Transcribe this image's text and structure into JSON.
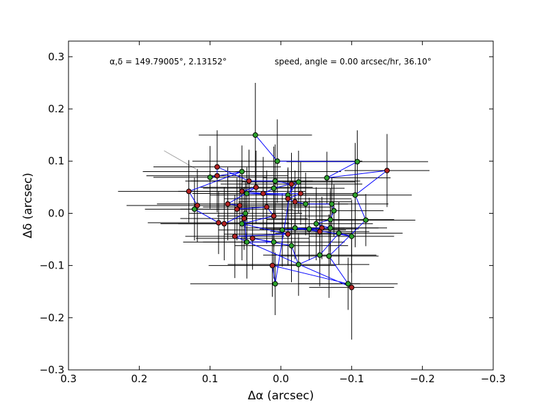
{
  "chart_data": {
    "type": "scatter",
    "title": "",
    "xlabel": "Δα (arcsec)",
    "ylabel": "Δδ (arcsec)",
    "xlim": [
      0.3,
      -0.3
    ],
    "ylim": [
      -0.3,
      0.33
    ],
    "x_inverted": true,
    "grid": false,
    "xticks": [
      0.3,
      0.2,
      0.1,
      0.0,
      -0.1,
      -0.2,
      -0.3
    ],
    "xtick_labels": [
      "0.3",
      "0.2",
      "0.1",
      "0.0",
      "−0.1",
      "−0.2",
      "−0.3"
    ],
    "yticks": [
      -0.3,
      -0.2,
      -0.1,
      0.0,
      0.1,
      0.2,
      0.3
    ],
    "ytick_labels": [
      "−0.3",
      "−0.2",
      "−0.1",
      "0.0",
      "0.1",
      "0.2",
      "0.3"
    ],
    "annotations": [
      "α,δ = 149.79005°, 2.13152°",
      "speed, angle = 0.00 arcsec/hr, 36.10°"
    ],
    "colors": {
      "path": "#0000ff",
      "errorbar": "#000000",
      "green_marker": "#2ca02c",
      "red_marker": "#b22222",
      "direction_line": "#a0a0a0"
    },
    "direction_line": {
      "x": [
        0.165,
        0.12
      ],
      "y": [
        0.12,
        0.085
      ]
    },
    "series": [
      {
        "marker_color": "green",
        "points": [
          {
            "x": 0.036,
            "y": 0.15,
            "xerr": 0.08,
            "yerr": 0.1
          },
          {
            "x": 0.005,
            "y": 0.1,
            "xerr": 0.12,
            "yerr": 0.08
          },
          {
            "x": -0.108,
            "y": 0.099,
            "xerr": 0.1,
            "yerr": 0.06
          },
          {
            "x": 0.055,
            "y": 0.08,
            "xerr": 0.14,
            "yerr": 0.05
          },
          {
            "x": 0.1,
            "y": 0.069,
            "xerr": 0.08,
            "yerr": 0.06
          },
          {
            "x": -0.065,
            "y": 0.068,
            "xerr": 0.09,
            "yerr": 0.05
          },
          {
            "x": 0.008,
            "y": 0.062,
            "xerr": 0.12,
            "yerr": 0.07
          },
          {
            "x": -0.025,
            "y": 0.06,
            "xerr": 0.08,
            "yerr": 0.06
          },
          {
            "x": 0.01,
            "y": 0.048,
            "xerr": 0.1,
            "yerr": 0.08
          },
          {
            "x": -0.105,
            "y": 0.035,
            "xerr": 0.08,
            "yerr": 0.1
          },
          {
            "x": 0.048,
            "y": 0.038,
            "xerr": 0.07,
            "yerr": 0.05
          },
          {
            "x": -0.01,
            "y": 0.035,
            "xerr": 0.11,
            "yerr": 0.05
          },
          {
            "x": -0.035,
            "y": 0.018,
            "xerr": 0.06,
            "yerr": 0.06
          },
          {
            "x": -0.072,
            "y": 0.018,
            "xerr": 0.08,
            "yerr": 0.05
          },
          {
            "x": 0.122,
            "y": 0.008,
            "xerr": 0.07,
            "yerr": 0.06
          },
          {
            "x": -0.075,
            "y": 0.005,
            "xerr": 0.07,
            "yerr": 0.05
          },
          {
            "x": 0.05,
            "y": 0.0,
            "xerr": 0.08,
            "yerr": 0.06
          },
          {
            "x": -0.07,
            "y": -0.012,
            "xerr": 0.09,
            "yerr": 0.06
          },
          {
            "x": -0.12,
            "y": -0.013,
            "xerr": 0.07,
            "yerr": 0.05
          },
          {
            "x": 0.055,
            "y": -0.02,
            "xerr": 0.09,
            "yerr": 0.07
          },
          {
            "x": -0.05,
            "y": -0.02,
            "xerr": 0.08,
            "yerr": 0.07
          },
          {
            "x": -0.02,
            "y": -0.028,
            "xerr": 0.07,
            "yerr": 0.06
          },
          {
            "x": -0.07,
            "y": -0.028,
            "xerr": 0.08,
            "yerr": 0.07
          },
          {
            "x": -0.04,
            "y": -0.03,
            "xerr": 0.07,
            "yerr": 0.06
          },
          {
            "x": -0.002,
            "y": -0.032,
            "xerr": 0.09,
            "yerr": 0.07
          },
          {
            "x": -0.082,
            "y": -0.038,
            "xerr": 0.09,
            "yerr": 0.06
          },
          {
            "x": -0.1,
            "y": -0.044,
            "xerr": 0.06,
            "yerr": 0.07
          },
          {
            "x": 0.01,
            "y": -0.055,
            "xerr": 0.1,
            "yerr": 0.07
          },
          {
            "x": 0.048,
            "y": -0.055,
            "xerr": 0.09,
            "yerr": 0.07
          },
          {
            "x": -0.015,
            "y": -0.062,
            "xerr": 0.08,
            "yerr": 0.07
          },
          {
            "x": -0.055,
            "y": -0.08,
            "xerr": 0.08,
            "yerr": 0.06
          },
          {
            "x": -0.068,
            "y": -0.082,
            "xerr": 0.07,
            "yerr": 0.08
          },
          {
            "x": -0.025,
            "y": -0.098,
            "xerr": 0.1,
            "yerr": 0.06
          },
          {
            "x": 0.008,
            "y": -0.135,
            "xerr": 0.12,
            "yerr": 0.06
          },
          {
            "x": -0.095,
            "y": -0.135,
            "xerr": 0.07,
            "yerr": 0.05
          }
        ]
      },
      {
        "marker_color": "red",
        "points": [
          {
            "x": 0.09,
            "y": 0.089,
            "xerr": 0.09,
            "yerr": 0.07
          },
          {
            "x": 0.09,
            "y": 0.072,
            "xerr": 0.1,
            "yerr": 0.07
          },
          {
            "x": -0.15,
            "y": 0.082,
            "xerr": 0.06,
            "yerr": 0.07
          },
          {
            "x": 0.045,
            "y": 0.062,
            "xerr": 0.09,
            "yerr": 0.06
          },
          {
            "x": -0.015,
            "y": 0.056,
            "xerr": 0.1,
            "yerr": 0.06
          },
          {
            "x": 0.035,
            "y": 0.05,
            "xerr": 0.08,
            "yerr": 0.07
          },
          {
            "x": 0.13,
            "y": 0.042,
            "xerr": 0.1,
            "yerr": 0.06
          },
          {
            "x": 0.055,
            "y": 0.042,
            "xerr": 0.09,
            "yerr": 0.06
          },
          {
            "x": 0.025,
            "y": 0.038,
            "xerr": 0.1,
            "yerr": 0.07
          },
          {
            "x": -0.028,
            "y": 0.038,
            "xerr": 0.08,
            "yerr": 0.06
          },
          {
            "x": -0.01,
            "y": 0.028,
            "xerr": 0.09,
            "yerr": 0.06
          },
          {
            "x": -0.02,
            "y": 0.022,
            "xerr": 0.08,
            "yerr": 0.06
          },
          {
            "x": 0.075,
            "y": 0.018,
            "xerr": 0.1,
            "yerr": 0.07
          },
          {
            "x": 0.118,
            "y": 0.015,
            "xerr": 0.1,
            "yerr": 0.07
          },
          {
            "x": 0.058,
            "y": 0.015,
            "xerr": 0.09,
            "yerr": 0.06
          },
          {
            "x": 0.062,
            "y": 0.008,
            "xerr": 0.08,
            "yerr": 0.06
          },
          {
            "x": 0.02,
            "y": 0.012,
            "xerr": 0.09,
            "yerr": 0.07
          },
          {
            "x": 0.01,
            "y": -0.005,
            "xerr": 0.08,
            "yerr": 0.06
          },
          {
            "x": 0.052,
            "y": -0.01,
            "xerr": 0.09,
            "yerr": 0.06
          },
          {
            "x": 0.088,
            "y": -0.018,
            "xerr": 0.1,
            "yerr": 0.06
          },
          {
            "x": 0.08,
            "y": -0.02,
            "xerr": 0.09,
            "yerr": 0.07
          },
          {
            "x": -0.058,
            "y": -0.028,
            "xerr": 0.08,
            "yerr": 0.06
          },
          {
            "x": -0.055,
            "y": -0.035,
            "xerr": 0.07,
            "yerr": 0.06
          },
          {
            "x": -0.01,
            "y": -0.04,
            "xerr": 0.09,
            "yerr": 0.06
          },
          {
            "x": 0.065,
            "y": -0.044,
            "xerr": 0.07,
            "yerr": 0.08
          },
          {
            "x": 0.04,
            "y": -0.048,
            "xerr": 0.08,
            "yerr": 0.06
          },
          {
            "x": 0.012,
            "y": -0.1,
            "xerr": 0.09,
            "yerr": 0.06
          },
          {
            "x": -0.1,
            "y": -0.142,
            "xerr": 0.06,
            "yerr": 0.1
          }
        ]
      }
    ],
    "path_order": [
      [
        "g",
        0
      ],
      [
        "g",
        1
      ],
      [
        "g",
        2
      ],
      [
        "g",
        5
      ],
      [
        "r",
        2
      ],
      [
        "g",
        9
      ],
      [
        "g",
        18
      ],
      [
        "g",
        31
      ],
      [
        "g",
        34
      ],
      [
        "r",
        26
      ],
      [
        "g",
        33
      ],
      [
        "r",
        4
      ],
      [
        "g",
        6
      ],
      [
        "r",
        3
      ],
      [
        "r",
        0
      ],
      [
        "r",
        1
      ],
      [
        "g",
        4
      ],
      [
        "g",
        3
      ],
      [
        "r",
        6
      ],
      [
        "r",
        13
      ],
      [
        "g",
        14
      ],
      [
        "r",
        19
      ],
      [
        "r",
        20
      ],
      [
        "g",
        16
      ],
      [
        "r",
        18
      ],
      [
        "g",
        28
      ],
      [
        "g",
        27
      ],
      [
        "r",
        25
      ],
      [
        "g",
        29
      ],
      [
        "g",
        32
      ],
      [
        "g",
        30
      ],
      [
        "g",
        25
      ],
      [
        "g",
        26
      ],
      [
        "g",
        23
      ],
      [
        "g",
        21
      ],
      [
        "r",
        22
      ],
      [
        "r",
        21
      ],
      [
        "g",
        24
      ],
      [
        "g",
        22
      ],
      [
        "g",
        20
      ],
      [
        "g",
        17
      ],
      [
        "g",
        15
      ],
      [
        "g",
        13
      ],
      [
        "g",
        12
      ],
      [
        "r",
        11
      ],
      [
        "r",
        10
      ],
      [
        "r",
        9
      ],
      [
        "g",
        10
      ],
      [
        "g",
        11
      ],
      [
        "g",
        7
      ],
      [
        "g",
        8
      ],
      [
        "r",
        8
      ],
      [
        "r",
        7
      ],
      [
        "r",
        5
      ],
      [
        "r",
        12
      ],
      [
        "r",
        14
      ],
      [
        "r",
        15
      ],
      [
        "r",
        16
      ],
      [
        "r",
        17
      ],
      [
        "g",
        19
      ],
      [
        "r",
        23
      ],
      [
        "r",
        24
      ],
      [
        "r",
        27
      ]
    ]
  }
}
